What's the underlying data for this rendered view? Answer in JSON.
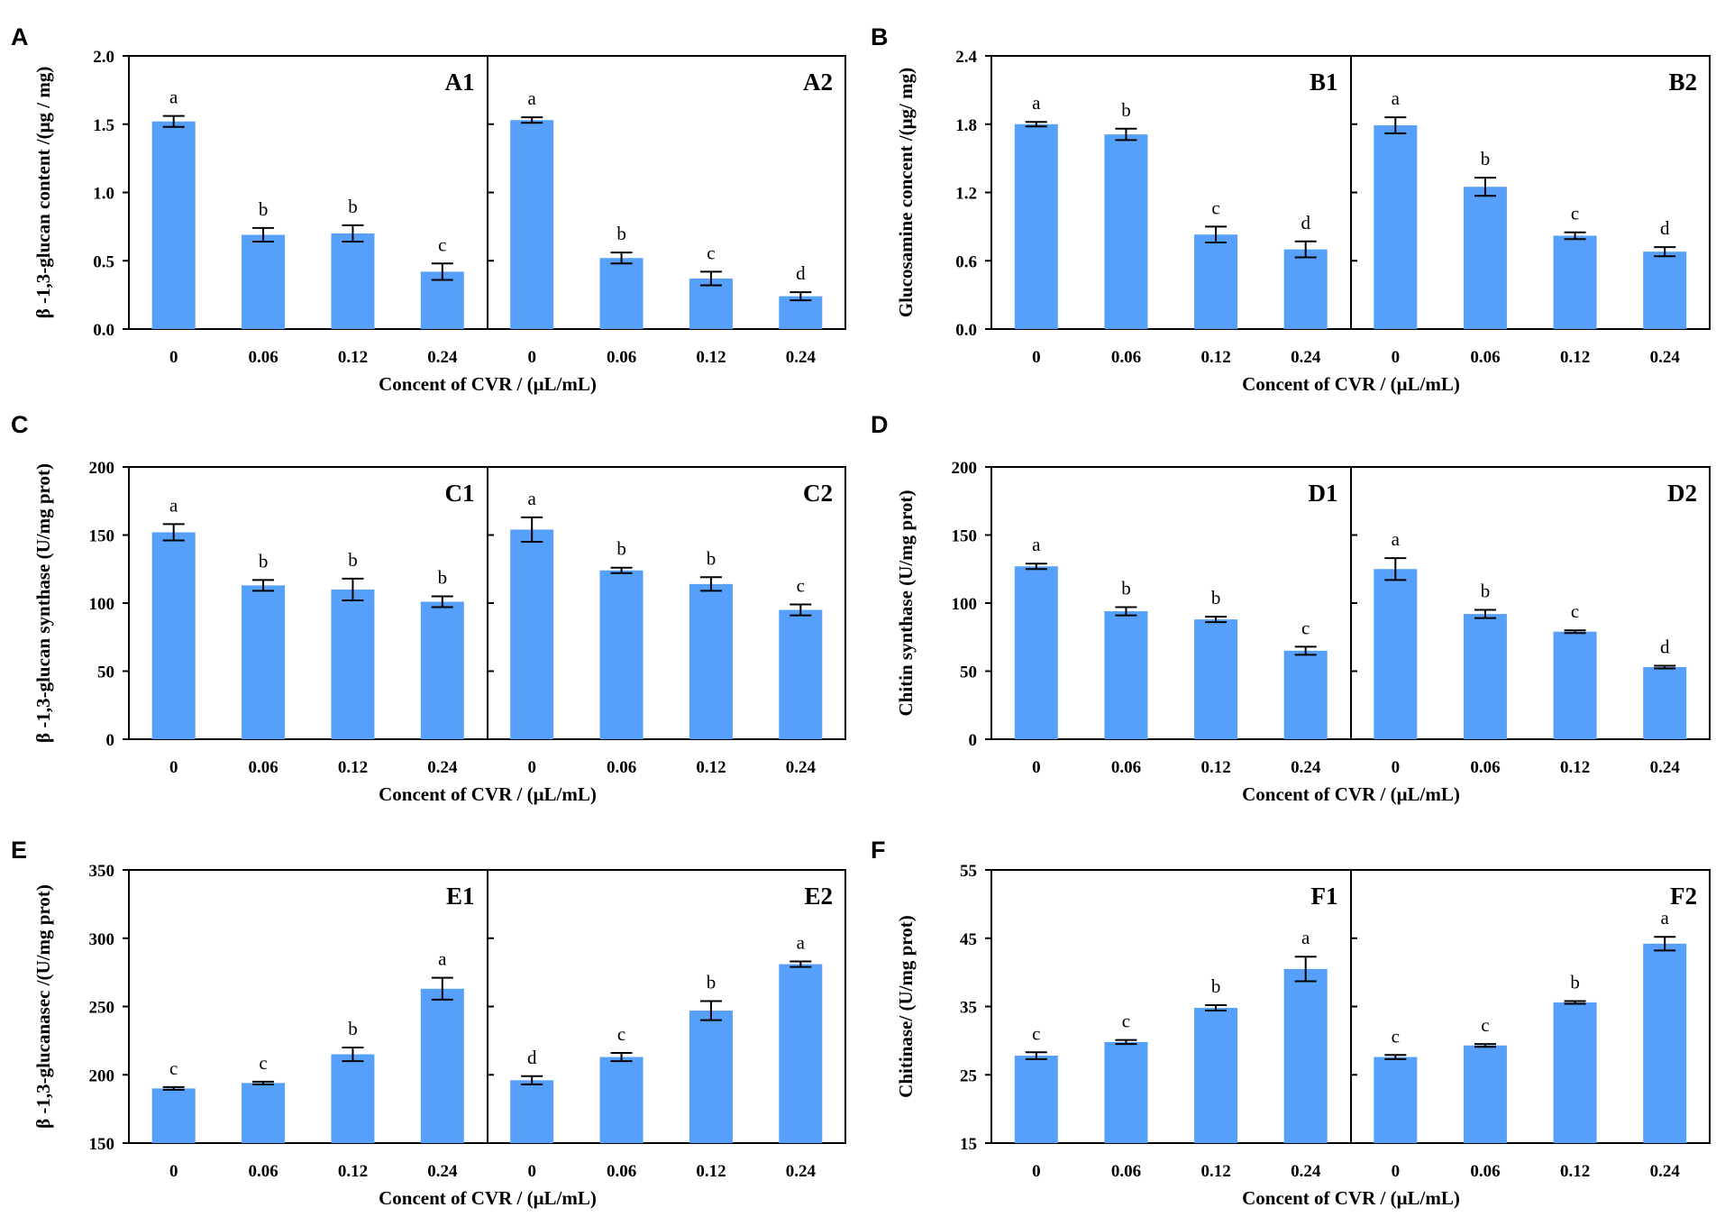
{
  "figure": {
    "bar_color": "#56a0fb",
    "error_color": "#000000",
    "xlabel": "Concent of CVR / (μL/mL)",
    "categories": [
      "0",
      "0.06",
      "0.12",
      "0.24"
    ]
  },
  "chart_data": [
    {
      "type": "bar",
      "panel": "A",
      "subpanels": [
        "A1",
        "A2"
      ],
      "ylabel": "β -1,3-glucan content /(μg / mg)",
      "xlabel": "Concent of CVR / (μL/mL)",
      "categories": [
        "0",
        "0.06",
        "0.12",
        "0.24"
      ],
      "ylim": [
        0,
        2.0
      ],
      "yticks": [
        "0.0",
        "0.5",
        "1.0",
        "1.5",
        "2.0"
      ],
      "series": [
        {
          "name": "A1",
          "values": [
            1.52,
            0.69,
            0.7,
            0.42
          ],
          "errors": [
            0.04,
            0.05,
            0.06,
            0.06
          ],
          "letters": [
            "a",
            "b",
            "b",
            "c"
          ]
        },
        {
          "name": "A2",
          "values": [
            1.53,
            0.52,
            0.37,
            0.24
          ],
          "errors": [
            0.02,
            0.04,
            0.05,
            0.03
          ],
          "letters": [
            "a",
            "b",
            "c",
            "d"
          ]
        }
      ]
    },
    {
      "type": "bar",
      "panel": "B",
      "subpanels": [
        "B1",
        "B2"
      ],
      "ylabel": "Glucosamine concent /(μg/ mg)",
      "xlabel": "Concent of CVR / (μL/mL)",
      "categories": [
        "0",
        "0.06",
        "0.12",
        "0.24"
      ],
      "ylim": [
        0,
        2.4
      ],
      "yticks": [
        "0.0",
        "0.6",
        "1.2",
        "1.8",
        "2.4"
      ],
      "series": [
        {
          "name": "B1",
          "values": [
            1.8,
            1.71,
            0.83,
            0.7
          ],
          "errors": [
            0.02,
            0.05,
            0.07,
            0.07
          ],
          "letters": [
            "a",
            "b",
            "c",
            "d"
          ]
        },
        {
          "name": "B2",
          "values": [
            1.79,
            1.25,
            0.82,
            0.68
          ],
          "errors": [
            0.07,
            0.08,
            0.03,
            0.04
          ],
          "letters": [
            "a",
            "b",
            "c",
            "d"
          ]
        }
      ]
    },
    {
      "type": "bar",
      "panel": "C",
      "subpanels": [
        "C1",
        "C2"
      ],
      "ylabel": "β -1,3-glucan synthase (U/mg prot)",
      "xlabel": "Concent of CVR / (μL/mL)",
      "categories": [
        "0",
        "0.06",
        "0.12",
        "0.24"
      ],
      "ylim": [
        0,
        200
      ],
      "yticks": [
        "0",
        "50",
        "100",
        "150",
        "200"
      ],
      "series": [
        {
          "name": "C1",
          "values": [
            152,
            113,
            110,
            101
          ],
          "errors": [
            6,
            4,
            8,
            4
          ],
          "letters": [
            "a",
            "b",
            "b",
            "b"
          ]
        },
        {
          "name": "C2",
          "values": [
            154,
            124,
            114,
            95
          ],
          "errors": [
            9,
            2,
            5,
            4
          ],
          "letters": [
            "a",
            "b",
            "b",
            "c"
          ]
        }
      ]
    },
    {
      "type": "bar",
      "panel": "D",
      "subpanels": [
        "D1",
        "D2"
      ],
      "ylabel": "Chitin synthase (U/mg prot)",
      "xlabel": "Concent of CVR / (μL/mL)",
      "categories": [
        "0",
        "0.06",
        "0.12",
        "0.24"
      ],
      "ylim": [
        0,
        200
      ],
      "yticks": [
        "0",
        "50",
        "100",
        "150",
        "200"
      ],
      "series": [
        {
          "name": "D1",
          "values": [
            127,
            94,
            88,
            65
          ],
          "errors": [
            2,
            3,
            2,
            3
          ],
          "letters": [
            "a",
            "b",
            "b",
            "c"
          ]
        },
        {
          "name": "D2",
          "values": [
            125,
            92,
            79,
            53
          ],
          "errors": [
            8,
            3,
            1,
            1
          ],
          "letters": [
            "a",
            "b",
            "c",
            "d"
          ]
        }
      ]
    },
    {
      "type": "bar",
      "panel": "E",
      "subpanels": [
        "E1",
        "E2"
      ],
      "ylabel": "β -1,3-glucanasec /(U/mg prot)",
      "xlabel": "Concent of CVR / (μL/mL)",
      "categories": [
        "0",
        "0.06",
        "0.12",
        "0.24"
      ],
      "ylim": [
        150,
        350
      ],
      "yticks": [
        "150",
        "200",
        "250",
        "300",
        "350"
      ],
      "series": [
        {
          "name": "E1",
          "values": [
            190,
            194,
            215,
            263
          ],
          "errors": [
            1,
            1,
            5,
            8
          ],
          "letters": [
            "c",
            "c",
            "b",
            "a"
          ]
        },
        {
          "name": "E2",
          "values": [
            196,
            213,
            247,
            281
          ],
          "errors": [
            3,
            3,
            7,
            2
          ],
          "letters": [
            "d",
            "c",
            "b",
            "a"
          ]
        }
      ]
    },
    {
      "type": "bar",
      "panel": "F",
      "subpanels": [
        "F1",
        "F2"
      ],
      "ylabel": "Chitinase/ (U/mg prot)",
      "xlabel": "Concent of CVR / (μL/mL)",
      "categories": [
        "0",
        "0.06",
        "0.12",
        "0.24"
      ],
      "ylim": [
        15,
        55
      ],
      "yticks": [
        "15",
        "25",
        "35",
        "45",
        "55"
      ],
      "series": [
        {
          "name": "F1",
          "values": [
            27.8,
            29.8,
            34.8,
            40.5
          ],
          "errors": [
            0.5,
            0.3,
            0.4,
            1.8
          ],
          "letters": [
            "c",
            "c",
            "b",
            "a"
          ]
        },
        {
          "name": "F2",
          "values": [
            27.6,
            29.3,
            35.6,
            44.2
          ],
          "errors": [
            0.3,
            0.2,
            0.2,
            1.0
          ],
          "letters": [
            "c",
            "c",
            "b",
            "a"
          ]
        }
      ]
    }
  ]
}
